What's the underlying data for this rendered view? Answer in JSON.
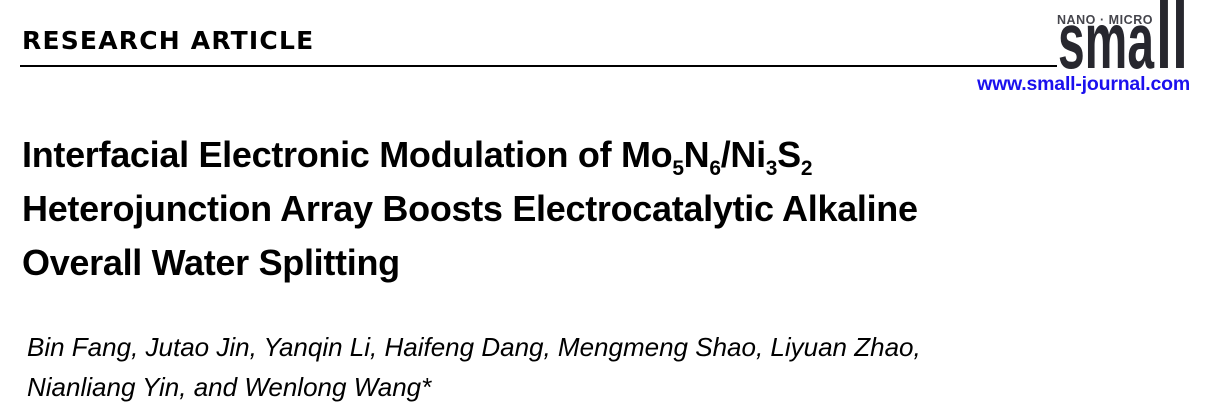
{
  "page": {
    "kicker": "RESEARCH ARTICLE",
    "journal": {
      "tagline": "NANO · MICRO",
      "name_prefix": "sma",
      "name_suffix": "ll",
      "website": "www.small-journal.com"
    },
    "title_lines": [
      [
        {
          "t": "Interfacial Electronic Modulation of Mo"
        },
        {
          "t": "5",
          "sub": true
        },
        {
          "t": "N"
        },
        {
          "t": "6",
          "sub": true
        },
        {
          "t": "/Ni"
        },
        {
          "t": "3",
          "sub": true
        },
        {
          "t": "S"
        },
        {
          "t": "2",
          "sub": true
        }
      ],
      [
        {
          "t": "Heterojunction Array Boosts Electrocatalytic Alkaline"
        }
      ],
      [
        {
          "t": "Overall Water Splitting"
        }
      ]
    ],
    "authors_lines": [
      "Bin Fang, Jutao Jin, Yanqin Li, Haifeng Dang, Mengmeng Shao, Liyuan Zhao,",
      "Nianliang Yin, and Wenlong Wang*"
    ],
    "colors": {
      "link_blue": "#1b10ee",
      "logo_dark": "#27272e",
      "tagline_gray": "#45454c"
    }
  }
}
